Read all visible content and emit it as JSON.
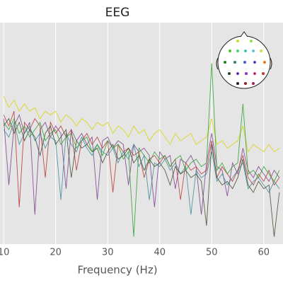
{
  "chart_data": {
    "type": "line",
    "title": "EEG",
    "x_label": "Frequency (Hz)",
    "x": [
      10,
      11,
      12,
      13,
      14,
      15,
      16,
      17,
      18,
      19,
      20,
      21,
      22,
      23,
      24,
      25,
      26,
      27,
      28,
      29,
      30,
      31,
      32,
      33,
      34,
      35,
      36,
      37,
      38,
      39,
      40,
      41,
      42,
      43,
      44,
      45,
      46,
      47,
      48,
      49,
      50,
      51,
      52,
      53,
      54,
      55,
      56,
      57,
      58,
      59,
      60,
      61,
      62,
      63
    ],
    "xlim": [
      9.3,
      63.7
    ],
    "ylim": [
      -60,
      0
    ],
    "xticks": [
      10,
      20,
      30,
      40,
      50,
      60
    ],
    "grid": true,
    "series": [
      {
        "color": "#d8d400",
        "values": [
          -20,
          -23,
          -21,
          -24,
          -22,
          -24,
          -23,
          -26,
          -24,
          -25,
          -24,
          -27,
          -25,
          -26,
          -28,
          -26,
          -27,
          -29,
          -27,
          -28,
          -27,
          -30,
          -28,
          -29,
          -31,
          -28,
          -30,
          -29,
          -32,
          -30,
          -29,
          -31,
          -33,
          -30,
          -32,
          -31,
          -30,
          -33,
          -32,
          -31,
          -26,
          -33,
          -32,
          -34,
          -33,
          -32,
          -28,
          -35,
          -33,
          -34,
          -35,
          -33,
          -35,
          -34
        ]
      },
      {
        "color": "#7a3d8c",
        "values": [
          -26,
          -44,
          -28,
          -25,
          -30,
          -27,
          -52,
          -29,
          -27,
          -31,
          -28,
          -30,
          -45,
          -29,
          -32,
          -30,
          -33,
          -31,
          -48,
          -32,
          -31,
          -34,
          -32,
          -33,
          -44,
          -33,
          -35,
          -34,
          -36,
          -50,
          -35,
          -37,
          -36,
          -45,
          -37,
          -38,
          -36,
          -39,
          -52,
          -38,
          -30,
          -39,
          -40,
          -47,
          -38,
          -41,
          -34,
          -40,
          -42,
          -39,
          -41,
          -43,
          -40,
          -42
        ]
      },
      {
        "color": "#b83232",
        "values": [
          -25,
          -28,
          -24,
          -50,
          -27,
          -29,
          -26,
          -28,
          -42,
          -27,
          -30,
          -28,
          -31,
          -29,
          -40,
          -32,
          -30,
          -33,
          -31,
          -34,
          -32,
          -46,
          -33,
          -35,
          -34,
          -36,
          -35,
          -42,
          -37,
          -36,
          -38,
          -36,
          -39,
          -37,
          -48,
          -38,
          -40,
          -39,
          -41,
          -40,
          -32,
          -42,
          -39,
          -41,
          -43,
          -40,
          -36,
          -42,
          -44,
          -41,
          -43,
          -40,
          -44,
          -42
        ]
      },
      {
        "color": "#3a8a9a",
        "values": [
          -29,
          -31,
          -27,
          -33,
          -30,
          -28,
          -32,
          -30,
          -34,
          -31,
          -32,
          -48,
          -30,
          -33,
          -35,
          -31,
          -34,
          -36,
          -33,
          -35,
          -36,
          -34,
          -38,
          -35,
          -37,
          -33,
          -39,
          -36,
          -48,
          -38,
          -39,
          -37,
          -40,
          -38,
          -41,
          -39,
          -52,
          -40,
          -42,
          -41,
          -35,
          -43,
          -41,
          -44,
          -42,
          -40,
          -38,
          -45,
          -43,
          -42,
          -44,
          -46,
          -43,
          -45
        ]
      },
      {
        "color": "#3d4a30",
        "values": [
          -28,
          -26,
          -30,
          -27,
          -32,
          -29,
          -31,
          -36,
          -30,
          -28,
          -33,
          -31,
          -29,
          -42,
          -32,
          -34,
          -33,
          -35,
          -34,
          -38,
          -35,
          -33,
          -37,
          -36,
          -34,
          -38,
          -36,
          -40,
          -37,
          -39,
          -38,
          -40,
          -44,
          -39,
          -41,
          -40,
          -42,
          -41,
          -43,
          -55,
          -33,
          -42,
          -44,
          -43,
          -45,
          -42,
          -37,
          -44,
          -46,
          -43,
          -45,
          -44,
          -58,
          -46
        ]
      },
      {
        "color": "#2ca02c",
        "values": [
          -27,
          -29,
          -26,
          -30,
          -28,
          -31,
          -29,
          -27,
          -32,
          -30,
          -29,
          -33,
          -31,
          -30,
          -34,
          -32,
          -31,
          -35,
          -33,
          -36,
          -32,
          -34,
          -33,
          -37,
          -35,
          -58,
          -34,
          -36,
          -38,
          -35,
          -37,
          -36,
          -39,
          -37,
          -36,
          -40,
          -38,
          -37,
          -39,
          -38,
          -11,
          -40,
          -38,
          -41,
          -39,
          -38,
          -22,
          -41,
          -40,
          -42,
          -39,
          -41,
          -43,
          -40
        ]
      }
    ]
  }
}
